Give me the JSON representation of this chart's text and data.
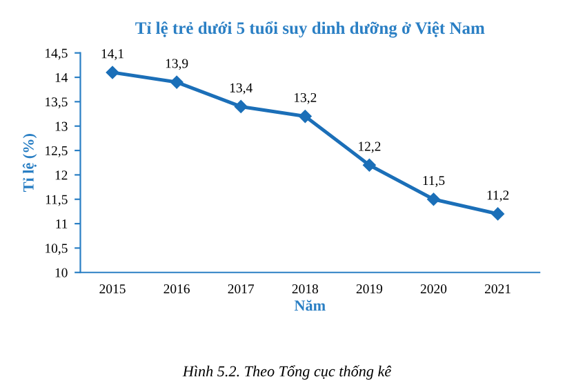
{
  "chart_data": {
    "type": "line",
    "title": "Tỉ lệ trẻ dưới 5 tuổi suy dinh dưỡng ở Việt Nam",
    "xlabel": "Năm",
    "ylabel": "Tỉ lệ (%)",
    "categories": [
      "2015",
      "2016",
      "2017",
      "2018",
      "2019",
      "2020",
      "2021"
    ],
    "series": [
      {
        "color": "#1b6fb8",
        "values": [
          14.1,
          13.9,
          13.4,
          13.2,
          12.2,
          11.5,
          11.2
        ],
        "value_labels": [
          "14,1",
          "13,9",
          "13,4",
          "13,2",
          "12,2",
          "11,5",
          "11,2"
        ]
      }
    ],
    "ylim": [
      10,
      14.5
    ],
    "yticks": [
      10,
      {
        "value": 10.5,
        "label": "10,5"
      },
      11,
      {
        "value": 11.5,
        "label": "11,5"
      },
      12,
      {
        "value": 12.5,
        "label": "12,5"
      },
      13,
      {
        "value": 13.5,
        "label": "13,5"
      },
      14,
      {
        "value": 14.5,
        "label": "14,5"
      }
    ],
    "marker": "diamond",
    "line_style": "solid",
    "grid": false,
    "legend": false,
    "annotations": [
      "Hình 5.2. Theo Tổng cục thống kê"
    ]
  }
}
